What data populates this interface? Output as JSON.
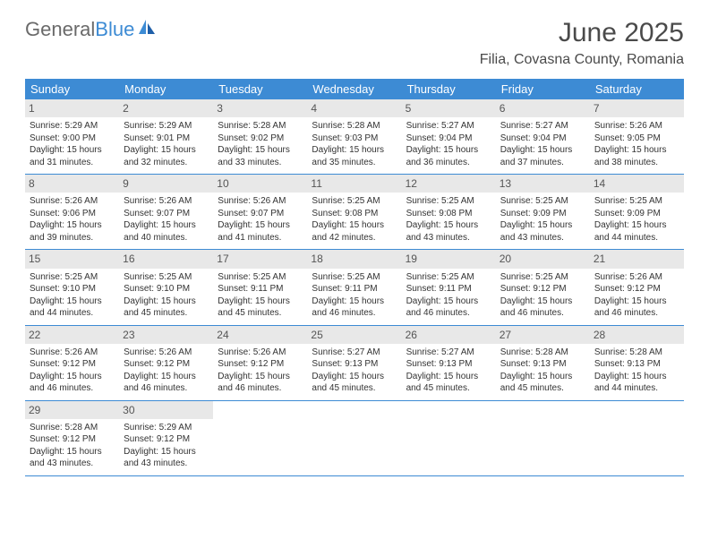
{
  "logo": {
    "part1": "General",
    "part2": "Blue"
  },
  "title": "June 2025",
  "location": "Filia, Covasna County, Romania",
  "colors": {
    "header_bg": "#3d8bd4",
    "header_text": "#ffffff",
    "daynum_bg": "#e8e8e8",
    "text": "#333333",
    "border": "#3d8bd4"
  },
  "weekdays": [
    "Sunday",
    "Monday",
    "Tuesday",
    "Wednesday",
    "Thursday",
    "Friday",
    "Saturday"
  ],
  "days": [
    {
      "n": 1,
      "sr": "5:29 AM",
      "ss": "9:00 PM",
      "dl": "15 hours and 31 minutes."
    },
    {
      "n": 2,
      "sr": "5:29 AM",
      "ss": "9:01 PM",
      "dl": "15 hours and 32 minutes."
    },
    {
      "n": 3,
      "sr": "5:28 AM",
      "ss": "9:02 PM",
      "dl": "15 hours and 33 minutes."
    },
    {
      "n": 4,
      "sr": "5:28 AM",
      "ss": "9:03 PM",
      "dl": "15 hours and 35 minutes."
    },
    {
      "n": 5,
      "sr": "5:27 AM",
      "ss": "9:04 PM",
      "dl": "15 hours and 36 minutes."
    },
    {
      "n": 6,
      "sr": "5:27 AM",
      "ss": "9:04 PM",
      "dl": "15 hours and 37 minutes."
    },
    {
      "n": 7,
      "sr": "5:26 AM",
      "ss": "9:05 PM",
      "dl": "15 hours and 38 minutes."
    },
    {
      "n": 8,
      "sr": "5:26 AM",
      "ss": "9:06 PM",
      "dl": "15 hours and 39 minutes."
    },
    {
      "n": 9,
      "sr": "5:26 AM",
      "ss": "9:07 PM",
      "dl": "15 hours and 40 minutes."
    },
    {
      "n": 10,
      "sr": "5:26 AM",
      "ss": "9:07 PM",
      "dl": "15 hours and 41 minutes."
    },
    {
      "n": 11,
      "sr": "5:25 AM",
      "ss": "9:08 PM",
      "dl": "15 hours and 42 minutes."
    },
    {
      "n": 12,
      "sr": "5:25 AM",
      "ss": "9:08 PM",
      "dl": "15 hours and 43 minutes."
    },
    {
      "n": 13,
      "sr": "5:25 AM",
      "ss": "9:09 PM",
      "dl": "15 hours and 43 minutes."
    },
    {
      "n": 14,
      "sr": "5:25 AM",
      "ss": "9:09 PM",
      "dl": "15 hours and 44 minutes."
    },
    {
      "n": 15,
      "sr": "5:25 AM",
      "ss": "9:10 PM",
      "dl": "15 hours and 44 minutes."
    },
    {
      "n": 16,
      "sr": "5:25 AM",
      "ss": "9:10 PM",
      "dl": "15 hours and 45 minutes."
    },
    {
      "n": 17,
      "sr": "5:25 AM",
      "ss": "9:11 PM",
      "dl": "15 hours and 45 minutes."
    },
    {
      "n": 18,
      "sr": "5:25 AM",
      "ss": "9:11 PM",
      "dl": "15 hours and 46 minutes."
    },
    {
      "n": 19,
      "sr": "5:25 AM",
      "ss": "9:11 PM",
      "dl": "15 hours and 46 minutes."
    },
    {
      "n": 20,
      "sr": "5:25 AM",
      "ss": "9:12 PM",
      "dl": "15 hours and 46 minutes."
    },
    {
      "n": 21,
      "sr": "5:26 AM",
      "ss": "9:12 PM",
      "dl": "15 hours and 46 minutes."
    },
    {
      "n": 22,
      "sr": "5:26 AM",
      "ss": "9:12 PM",
      "dl": "15 hours and 46 minutes."
    },
    {
      "n": 23,
      "sr": "5:26 AM",
      "ss": "9:12 PM",
      "dl": "15 hours and 46 minutes."
    },
    {
      "n": 24,
      "sr": "5:26 AM",
      "ss": "9:12 PM",
      "dl": "15 hours and 46 minutes."
    },
    {
      "n": 25,
      "sr": "5:27 AM",
      "ss": "9:13 PM",
      "dl": "15 hours and 45 minutes."
    },
    {
      "n": 26,
      "sr": "5:27 AM",
      "ss": "9:13 PM",
      "dl": "15 hours and 45 minutes."
    },
    {
      "n": 27,
      "sr": "5:28 AM",
      "ss": "9:13 PM",
      "dl": "15 hours and 45 minutes."
    },
    {
      "n": 28,
      "sr": "5:28 AM",
      "ss": "9:13 PM",
      "dl": "15 hours and 44 minutes."
    },
    {
      "n": 29,
      "sr": "5:28 AM",
      "ss": "9:12 PM",
      "dl": "15 hours and 43 minutes."
    },
    {
      "n": 30,
      "sr": "5:29 AM",
      "ss": "9:12 PM",
      "dl": "15 hours and 43 minutes."
    }
  ],
  "labels": {
    "sunrise": "Sunrise:",
    "sunset": "Sunset:",
    "daylight": "Daylight:"
  },
  "start_offset": 0
}
